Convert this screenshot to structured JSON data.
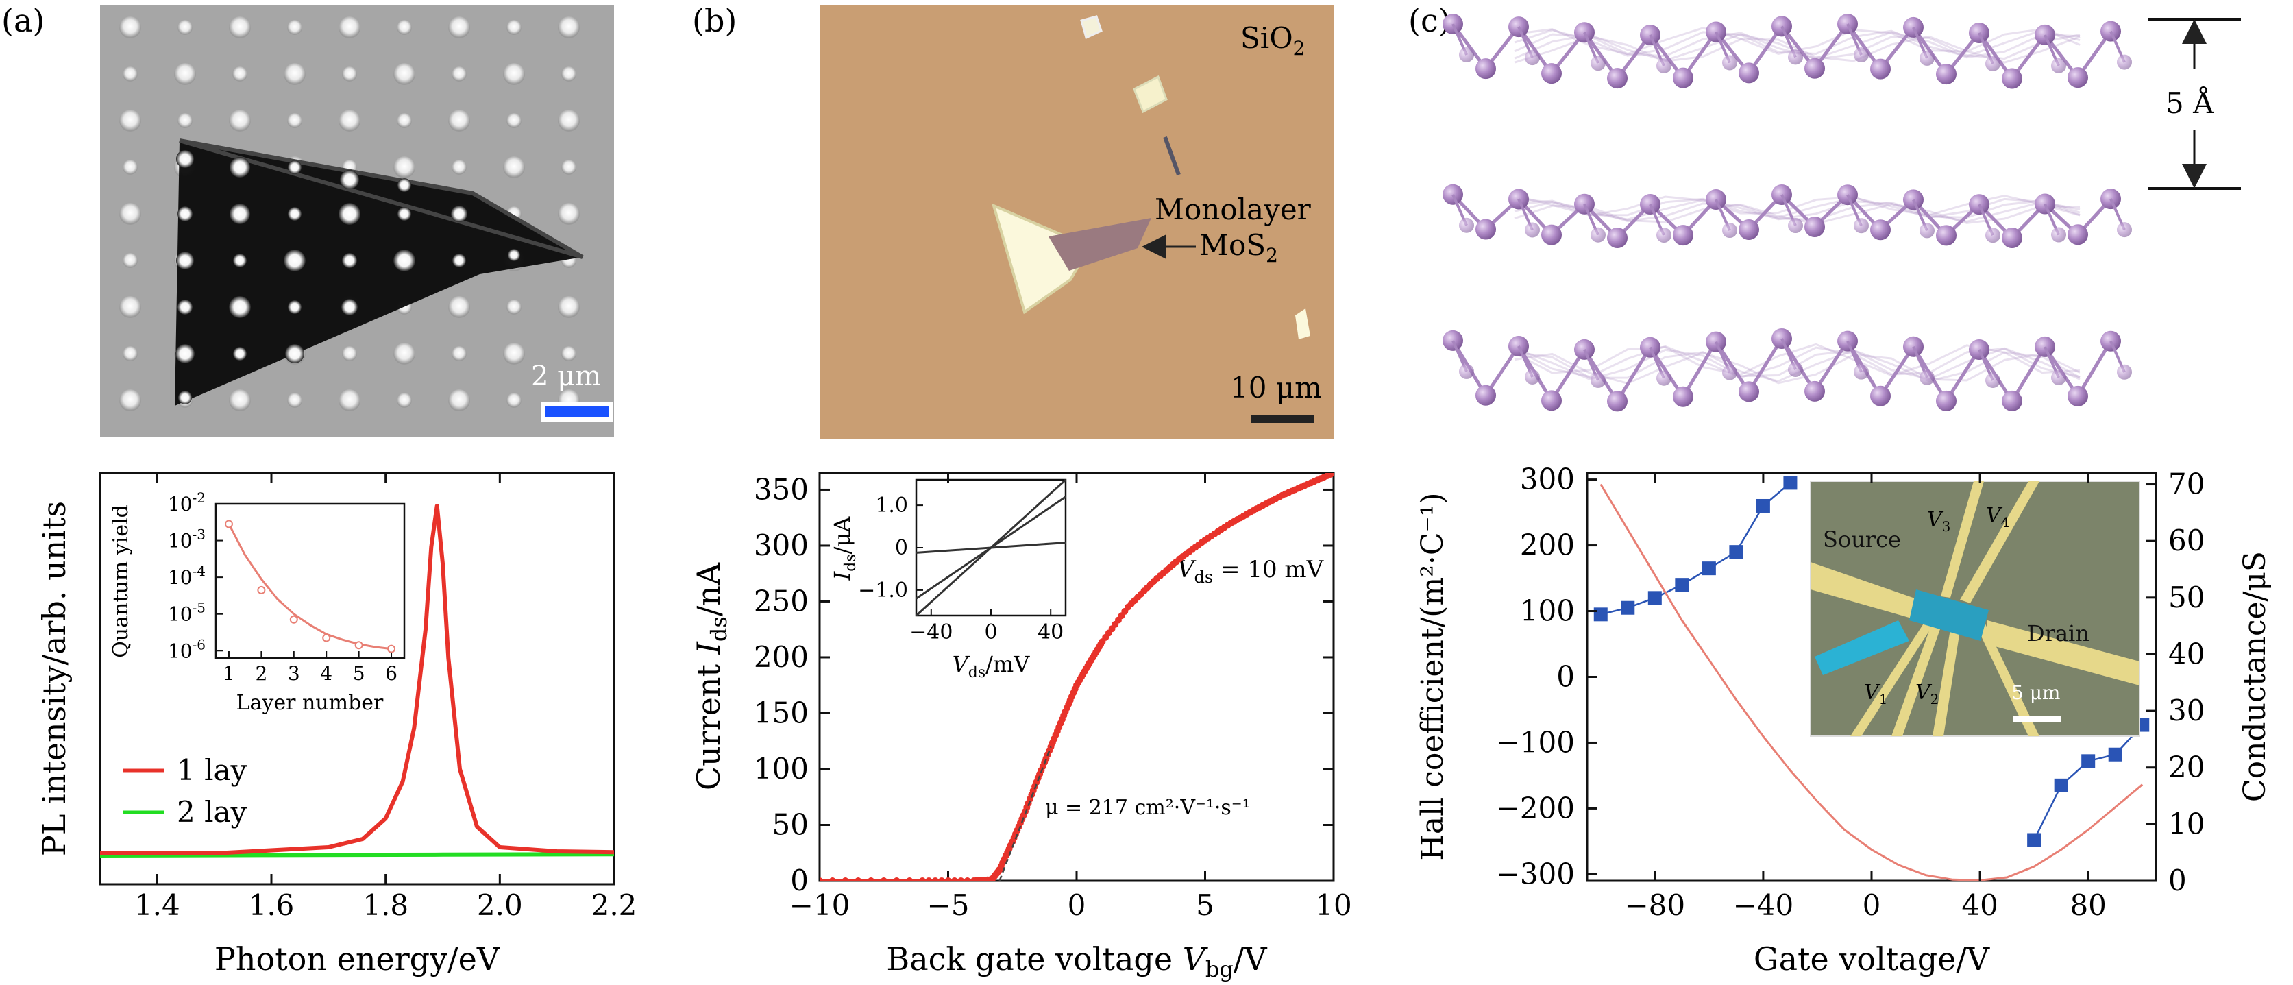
{
  "panel_labels": {
    "a": "(a)",
    "b": "(b)",
    "c": "(c)"
  },
  "images": {
    "a_scale_label": "2 μm",
    "b_sio2_base": "SiO",
    "b_sio2_sub": "2",
    "b_monolayer_line1": "Monolayer",
    "b_mos2_base": "MoS",
    "b_mos2_sub": "2",
    "b_scale_label": "10 μm",
    "c_spacing_label": "5 Å"
  },
  "inset_c": {
    "source": "Source",
    "drain": "Drain",
    "v1": "1",
    "v2": "2",
    "v3": "3",
    "v4": "4",
    "v_prefix": "V",
    "scale": "5 μm"
  },
  "colors": {
    "red": "#e8322a",
    "green": "#22dd22",
    "blue": "#2a54b5",
    "salmon": "#e87f74",
    "optical_bg": "#c99e73",
    "lattice": "#a886bf"
  },
  "chart_data": [
    {
      "id": "a_pl",
      "type": "line",
      "xlabel": "Photon energy/eV",
      "ylabel": "PL intensity/arb. units",
      "xlim": [
        1.3,
        2.2
      ],
      "xticks": [
        "1.4",
        "1.6",
        "1.8",
        "2.0",
        "2.2"
      ],
      "xtick_values": [
        1.4,
        1.6,
        1.8,
        2.0,
        2.2
      ],
      "ylim": [
        0,
        1
      ],
      "yticks_shown": false,
      "legend_position": "bottom-left",
      "series": [
        {
          "name": "1 lay",
          "color": "#e8322a",
          "x": [
            1.3,
            1.5,
            1.7,
            1.76,
            1.8,
            1.83,
            1.85,
            1.87,
            1.88,
            1.89,
            1.9,
            1.91,
            1.93,
            1.96,
            2.0,
            2.1,
            2.2
          ],
          "y": [
            0.075,
            0.075,
            0.09,
            0.11,
            0.16,
            0.25,
            0.38,
            0.62,
            0.82,
            0.92,
            0.78,
            0.55,
            0.28,
            0.14,
            0.09,
            0.08,
            0.078
          ]
        },
        {
          "name": "2 lay",
          "color": "#22dd22",
          "x": [
            1.3,
            1.6,
            1.9,
            2.2
          ],
          "y": [
            0.07,
            0.071,
            0.072,
            0.073
          ]
        }
      ],
      "inset": {
        "type": "scatter",
        "xlabel": "Layer number",
        "ylabel": "Quantum yield",
        "xlim": [
          0.6,
          6.4
        ],
        "xticks": [
          "1",
          "2",
          "3",
          "4",
          "5",
          "6"
        ],
        "xtick_values": [
          1,
          2,
          3,
          4,
          5,
          6
        ],
        "yscale": "log",
        "ylim_exp": [
          -6.2,
          -2
        ],
        "ytick_base": "10",
        "yticks_exp": [
          "-2",
          "-3",
          "-4",
          "-5",
          "-6"
        ],
        "ytick_values_exp": [
          -2,
          -3,
          -4,
          -5,
          -6
        ],
        "points": {
          "x": [
            1,
            2,
            3,
            4,
            5,
            6
          ],
          "log10_y": [
            -2.55,
            -4.35,
            -5.15,
            -5.65,
            -5.85,
            -5.95
          ]
        },
        "fit": {
          "x": [
            1,
            1.5,
            2,
            2.5,
            3,
            3.5,
            4,
            4.5,
            5,
            5.5,
            6
          ],
          "log10_y": [
            -2.55,
            -3.4,
            -4.05,
            -4.6,
            -5.0,
            -5.3,
            -5.55,
            -5.7,
            -5.82,
            -5.9,
            -5.95
          ]
        },
        "color": "#e87f74"
      }
    },
    {
      "id": "b_transfer",
      "type": "scatter",
      "xlabel_prefix": "Back gate voltage ",
      "xlabel_var": "V",
      "xlabel_sub": "bg",
      "xlabel_unit": "/V",
      "ylabel_prefix": "Current ",
      "ylabel_var": "I",
      "ylabel_sub": "ds",
      "ylabel_unit": "/nA",
      "xlim": [
        -10,
        10
      ],
      "xticks": [
        "−10",
        "−5",
        "0",
        "5",
        "10"
      ],
      "xtick_values": [
        -10,
        -5,
        0,
        5,
        10
      ],
      "ylim": [
        0,
        365
      ],
      "yticks": [
        "0",
        "50",
        "100",
        "150",
        "200",
        "250",
        "300",
        "350"
      ],
      "ytick_values": [
        0,
        50,
        100,
        150,
        200,
        250,
        300,
        350
      ],
      "annotation_vds_var": "V",
      "annotation_vds_sub": "ds",
      "annotation_vds_val": " = 10 mV",
      "annotation_mu": "μ = 217 cm²·V⁻¹·s⁻¹",
      "series": [
        {
          "name": "",
          "color": "#e8322a",
          "x": [
            -10,
            -6,
            -4,
            -3.3,
            -3,
            -2.5,
            -2,
            -1.5,
            -1,
            -0.5,
            0,
            0.5,
            1,
            2,
            3,
            4,
            5,
            6,
            7,
            8,
            9,
            10
          ],
          "y": [
            0,
            0,
            0,
            1,
            10,
            35,
            62,
            92,
            120,
            148,
            175,
            195,
            214,
            245,
            268,
            288,
            305,
            320,
            333,
            345,
            355,
            365
          ]
        }
      ],
      "inset": {
        "type": "line",
        "xlabel_var": "V",
        "xlabel_sub": "ds",
        "xlabel_unit": "/mV",
        "ylabel_var": "I",
        "ylabel_sub": "ds",
        "ylabel_unit": "/μA",
        "xlim": [
          -50,
          50
        ],
        "xticks": [
          "−40",
          "0",
          "40"
        ],
        "xtick_values": [
          -40,
          0,
          40
        ],
        "ylim": [
          -1.6,
          1.6
        ],
        "yticks": [
          "1.0",
          "0",
          "−1.0"
        ],
        "ytick_values": [
          1.0,
          0,
          -1.0
        ],
        "lines_slope": [
          0.032,
          0.024,
          0.0024
        ]
      }
    },
    {
      "id": "c_hall",
      "type": "line",
      "xlabel": "Gate voltage/V",
      "ylabel_left": "Hall coefficient/(m²·C⁻¹)",
      "ylabel_right": "Conductance/μS",
      "xlim": [
        -105,
        105
      ],
      "xticks": [
        "−80",
        "−40",
        "0",
        "40",
        "80"
      ],
      "xtick_values": [
        -80,
        -40,
        0,
        40,
        80
      ],
      "ylim_left": [
        -310,
        310
      ],
      "yticks_left": [
        "300",
        "200",
        "100",
        "0",
        "−100",
        "−200",
        "−300"
      ],
      "ytick_values_left": [
        300,
        200,
        100,
        0,
        -100,
        -200,
        -300
      ],
      "ylim_right": [
        0,
        72
      ],
      "yticks_right": [
        "0",
        "10",
        "20",
        "30",
        "40",
        "50",
        "60",
        "70"
      ],
      "ytick_values_right": [
        0,
        10,
        20,
        30,
        40,
        50,
        60,
        70
      ],
      "series": [
        {
          "name": "",
          "axis": "left",
          "kind": "scatter-line",
          "color": "#2a54b5",
          "x": [
            -100,
            -90,
            -80,
            -70,
            -60,
            -50,
            -40,
            -30
          ],
          "y": [
            95,
            105,
            120,
            140,
            165,
            190,
            260,
            295
          ]
        },
        {
          "name": "",
          "axis": "left",
          "kind": "scatter-line",
          "color": "#2a54b5",
          "x": [
            60,
            70,
            80,
            90,
            100
          ],
          "y": [
            -248,
            -165,
            -128,
            -118,
            -73
          ]
        },
        {
          "name": "",
          "axis": "right",
          "kind": "line",
          "color": "#e87f74",
          "x": [
            -100,
            -90,
            -80,
            -70,
            -60,
            -50,
            -40,
            -30,
            -20,
            -10,
            0,
            10,
            20,
            30,
            40,
            50,
            60,
            70,
            80,
            90,
            100
          ],
          "y": [
            70,
            62,
            54,
            46,
            39,
            32,
            25.5,
            19.5,
            14,
            9,
            5.5,
            2.8,
            1,
            0.2,
            0.1,
            0.6,
            2.5,
            5.5,
            9,
            13,
            17
          ]
        }
      ]
    }
  ]
}
